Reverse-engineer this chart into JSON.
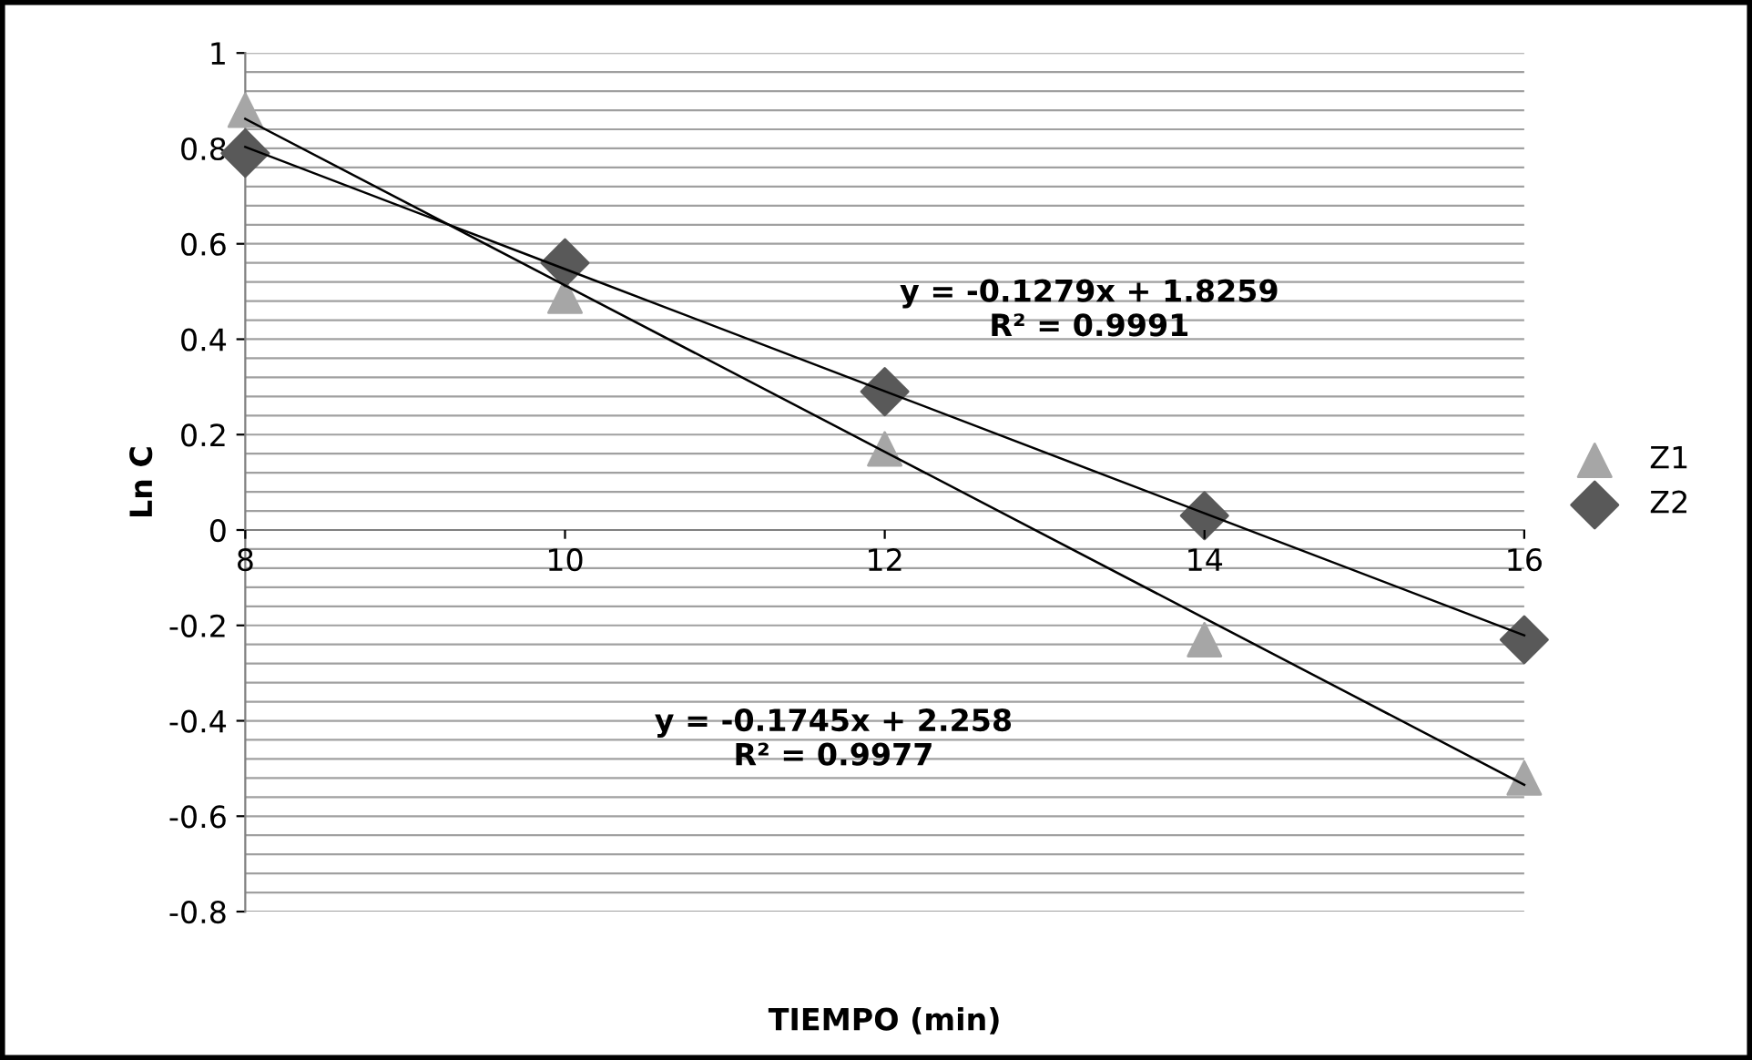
{
  "chart_data": {
    "type": "scatter",
    "xlabel": "TIEMPO (min)",
    "ylabel": "Ln C",
    "x": [
      8,
      10,
      12,
      14,
      16
    ],
    "series": [
      {
        "name": "Z1",
        "color": "#a6a6a6",
        "marker": "triangle",
        "values": [
          0.88,
          0.49,
          0.17,
          -0.23,
          -0.52
        ]
      },
      {
        "name": "Z2",
        "color": "#595959",
        "marker": "diamond",
        "values": [
          0.79,
          0.56,
          0.29,
          0.03,
          -0.23
        ]
      },
      {
        "type": "line",
        "color": "#000000",
        "values": [
          0.862,
          0.513,
          0.164,
          -0.185,
          -0.534
        ]
      },
      {
        "type": "line",
        "color": "#000000",
        "values": [
          0.803,
          0.547,
          0.291,
          0.035,
          -0.221
        ]
      }
    ],
    "annotations": [
      "y = -0.1279x + 1.8259\nR² = 0.9991",
      "y = -0.1745x + 2.258\nR² = 0.9977"
    ],
    "xlim": [
      8,
      16
    ],
    "xticks": [
      8,
      10,
      12,
      14,
      16
    ],
    "ylim": [
      -0.8,
      1
    ],
    "yticks": [
      -0.8,
      -0.6,
      -0.4,
      -0.2,
      0,
      0.2,
      0.4,
      0.6,
      0.8,
      1
    ],
    "grid": "y",
    "legend": "right"
  }
}
